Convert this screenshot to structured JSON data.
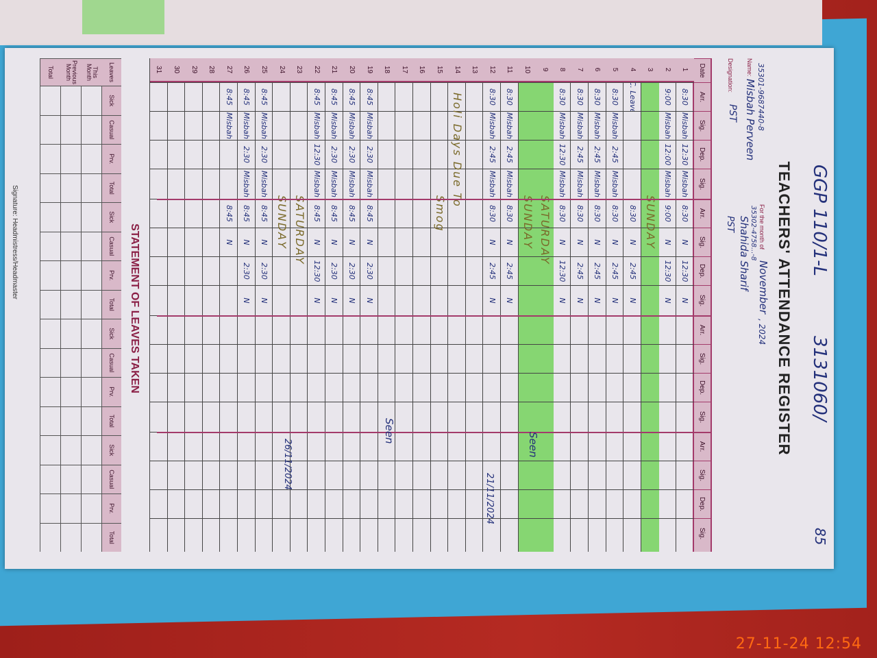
{
  "header": {
    "top_note_left": "GGP 110/1-L",
    "top_note_right": "3131060/",
    "page_number": "85",
    "title": "TEACHERS' ATTENDANCE REGISTER",
    "name_label": "Name:",
    "month_label": "For the month of",
    "month_value": "November",
    "year_value": ", 2024",
    "designation_label": "Designation:",
    "teacher1_cnic": "35301-9687440-8",
    "teacher1_name": "Misbah Perveen",
    "teacher1_designation": "PST",
    "teacher2_cnic": "35302-4758...-8",
    "teacher2_name": "Shahida Sharif",
    "teacher2_designation": "PST"
  },
  "columns": {
    "date": "Date",
    "group": [
      "Arr.",
      "Sig.",
      "Dep.",
      "Sig."
    ]
  },
  "rows": [
    {
      "date": "1",
      "g1": [
        "8:30",
        "Misbah",
        "12:30",
        "Misbah"
      ],
      "g2": [
        "8:30",
        "N",
        "12:30",
        "N"
      ]
    },
    {
      "date": "2",
      "g1": [
        "9:00",
        "Misbah",
        "12:00",
        "Misbah"
      ],
      "g2": [
        "9:00",
        "N",
        "12:30",
        "N"
      ]
    },
    {
      "date": "3",
      "green": true,
      "g1": [
        "",
        "",
        "",
        ""
      ],
      "g2": [
        "",
        "",
        "",
        ""
      ],
      "note": "SUNDAY"
    },
    {
      "date": "4",
      "g1": [
        "C. Leave",
        "",
        "",
        ""
      ],
      "g2": [
        "8:30",
        "N",
        "2:45",
        "N"
      ]
    },
    {
      "date": "5",
      "g1": [
        "8:30",
        "Misbah",
        "2:45",
        "Misbah"
      ],
      "g2": [
        "8:30",
        "N",
        "2:45",
        "N"
      ]
    },
    {
      "date": "6",
      "g1": [
        "8:30",
        "Misbah",
        "2:45",
        "Misbah"
      ],
      "g2": [
        "8:30",
        "N",
        "2:45",
        "N"
      ]
    },
    {
      "date": "7",
      "g1": [
        "8:30",
        "Misbah",
        "2:45",
        "Misbah"
      ],
      "g2": [
        "8:30",
        "N",
        "2:45",
        "N"
      ]
    },
    {
      "date": "8",
      "g1": [
        "8:30",
        "Misbah",
        "12:30",
        "Misbah"
      ],
      "g2": [
        "8:30",
        "N",
        "12:30",
        "N"
      ]
    },
    {
      "date": "9",
      "green": true,
      "g1": [
        "",
        "",
        "",
        ""
      ],
      "g2": [
        "",
        "",
        "",
        ""
      ],
      "note": "SATURDAY"
    },
    {
      "date": "10",
      "green": true,
      "g1": [
        "",
        "",
        "",
        ""
      ],
      "g2": [
        "",
        "",
        "",
        ""
      ],
      "note": "SUNDAY"
    },
    {
      "date": "11",
      "g1": [
        "8:30",
        "Misbah",
        "2:45",
        "Misbah"
      ],
      "g2": [
        "8:30",
        "N",
        "2:45",
        "N"
      ]
    },
    {
      "date": "12",
      "g1": [
        "8:30",
        "Misbah",
        "2:45",
        "Misbah"
      ],
      "g2": [
        "8:30",
        "N",
        "2:45",
        "N"
      ]
    },
    {
      "date": "13",
      "g1": [
        "",
        "",
        "",
        ""
      ],
      "g2": [
        "",
        "",
        "",
        ""
      ]
    },
    {
      "date": "14",
      "g1": [
        "",
        "",
        "",
        ""
      ],
      "g2": [
        "",
        "",
        "",
        ""
      ],
      "note": "Holi Days Due To"
    },
    {
      "date": "15",
      "g1": [
        "",
        "",
        "",
        ""
      ],
      "g2": [
        "",
        "",
        "",
        ""
      ],
      "note": "Smog"
    },
    {
      "date": "16",
      "g1": [
        "",
        "",
        "",
        ""
      ],
      "g2": [
        "",
        "",
        "",
        ""
      ]
    },
    {
      "date": "17",
      "g1": [
        "",
        "",
        "",
        ""
      ],
      "g2": [
        "",
        "",
        "",
        ""
      ]
    },
    {
      "date": "18",
      "g1": [
        "",
        "",
        "",
        ""
      ],
      "g2": [
        "",
        "",
        "",
        ""
      ]
    },
    {
      "date": "19",
      "g1": [
        "8:45",
        "Misbah",
        "2:30",
        "Misbah"
      ],
      "g2": [
        "8:45",
        "N",
        "2:30",
        "N"
      ]
    },
    {
      "date": "20",
      "g1": [
        "8:45",
        "Misbah",
        "2:30",
        "Misbah"
      ],
      "g2": [
        "8:45",
        "N",
        "2:30",
        "N"
      ]
    },
    {
      "date": "21",
      "g1": [
        "8:45",
        "Misbah",
        "2:30",
        "Misbah"
      ],
      "g2": [
        "8:45",
        "N",
        "2:30",
        "N"
      ]
    },
    {
      "date": "22",
      "g1": [
        "8:45",
        "Misbah",
        "12:30",
        "Misbah"
      ],
      "g2": [
        "8:45",
        "N",
        "12:30",
        "N"
      ]
    },
    {
      "date": "23",
      "g1": [
        "",
        "",
        "",
        ""
      ],
      "g2": [
        "",
        "",
        "",
        ""
      ],
      "note": "SATURDAY"
    },
    {
      "date": "24",
      "g1": [
        "",
        "",
        "",
        ""
      ],
      "g2": [
        "",
        "",
        "",
        ""
      ],
      "note": "SUNDAY"
    },
    {
      "date": "25",
      "g1": [
        "8:45",
        "Misbah",
        "2:30",
        "Misbah"
      ],
      "g2": [
        "8:45",
        "N",
        "2:30",
        "N"
      ]
    },
    {
      "date": "26",
      "g1": [
        "8:45",
        "Misbah",
        "2:30",
        "Misbah"
      ],
      "g2": [
        "8:45",
        "N",
        "2:30",
        "N"
      ]
    },
    {
      "date": "27",
      "g1": [
        "8:45",
        "Misbah",
        "",
        ""
      ],
      "g2": [
        "8:45",
        "N",
        "",
        ""
      ]
    },
    {
      "date": "28",
      "g1": [
        "",
        "",
        "",
        ""
      ],
      "g2": [
        "",
        "",
        "",
        ""
      ]
    },
    {
      "date": "29",
      "g1": [
        "",
        "",
        "",
        ""
      ],
      "g2": [
        "",
        "",
        "",
        ""
      ]
    },
    {
      "date": "30",
      "g1": [
        "",
        "",
        "",
        ""
      ],
      "g2": [
        "",
        "",
        "",
        ""
      ]
    },
    {
      "date": "31",
      "g1": [
        "",
        "",
        "",
        ""
      ],
      "g2": [
        "",
        "",
        "",
        ""
      ]
    }
  ],
  "remarks": {
    "seen_1": "Seen",
    "date_1": "21/11/2024",
    "seen_2": "Seen",
    "date_2": "26/11/2024"
  },
  "leaves": {
    "title": "STATEMENT OF LEAVES TAKEN",
    "row_label_header": "Leaves",
    "group_headers": [
      "Sick",
      "Casual",
      "Prv.",
      "Total"
    ],
    "row_labels": [
      "This Month",
      "Previous Month",
      "Total"
    ]
  },
  "signature_label": "Signature: Headmistress/Headmaster",
  "camera_timestamp": "27-11-24  12:54",
  "colors": {
    "highlight_green": "#86d672",
    "form_pink": "#d9b9c9",
    "ink_blue": "#23307a",
    "timestamp": "#ff6a12"
  }
}
